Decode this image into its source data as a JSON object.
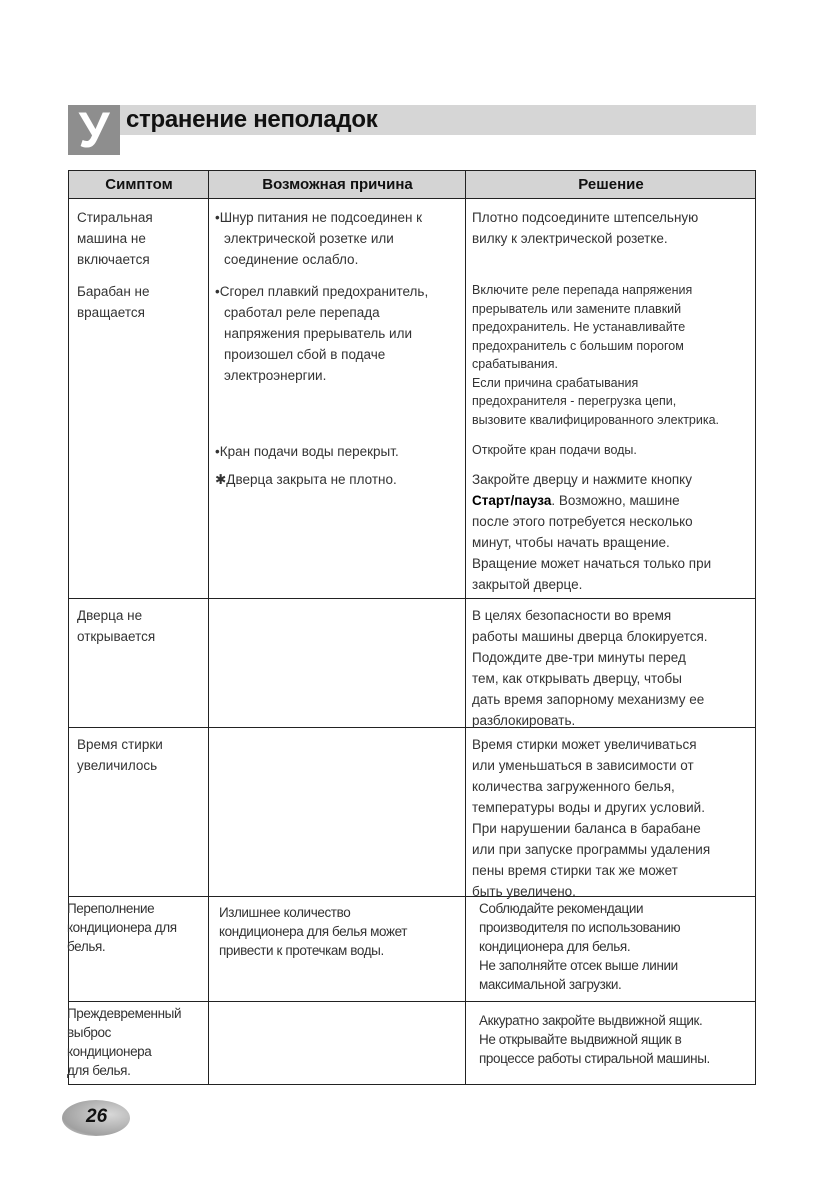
{
  "title": {
    "initial": "У",
    "rest": "странение неполадок"
  },
  "headers": [
    "Симптом",
    "Возможная причина",
    "Решение"
  ],
  "blocks": [
    {
      "col": "symptom",
      "lines": [
        "Стиральная",
        "машина не",
        "включается"
      ]
    },
    {
      "col": "symptom",
      "lines": [
        "Барабан не",
        "вращается"
      ]
    },
    {
      "col": "symptom",
      "lines": [
        "Дверца не",
        "открывается"
      ]
    },
    {
      "col": "symptom",
      "lines": [
        "Время стирки",
        "увеличилось"
      ]
    },
    {
      "col": "symptom",
      "lines": [
        "Переполнение",
        "кондиционера для",
        "белья."
      ]
    },
    {
      "col": "symptom",
      "lines": [
        "Преждевременный",
        "выброс",
        "кондиционера",
        "для белья."
      ]
    },
    {
      "col": "cause",
      "lines": [
        "•Шнур питания не подсоединен к",
        "электрической розетке или",
        "соединение ослабло."
      ]
    },
    {
      "col": "cause",
      "lines": [
        "•Сгорел плавкий предохранитель,",
        "сработал реле перепада",
        "напряжения прерыватель или",
        "произошел сбой в подаче",
        "электроэнергии."
      ]
    },
    {
      "col": "cause",
      "lines": [
        "•Кран подачи воды перекрыт."
      ]
    },
    {
      "col": "cause",
      "lines": [
        "✱Дверца закрыта не плотно."
      ]
    },
    {
      "col": "cause",
      "lines": [
        "Излишнее количество",
        "кондиционера для белья может",
        "привести к протечкам воды."
      ]
    },
    {
      "col": "solution",
      "lines": [
        "Плотно подсоедините штепсельную",
        "вилку к электрической розетке."
      ]
    },
    {
      "col": "solution",
      "lines": [
        "Включите реле перепада напряжения",
        "прерыватель или замените плавкий",
        "предохранитель. Не устанавливайте",
        "предохранитель с большим порогом",
        "срабатывания.",
        "Если причина срабатывания",
        "предохранителя - перегрузка цепи,",
        "вызовите квалифицированного электрика."
      ]
    },
    {
      "col": "solution",
      "lines": [
        "Откройте кран подачи воды."
      ]
    },
    {
      "col": "solution",
      "lines": [
        "Закройте дверцу и нажмите кнопку",
        [
          {
            "b": "Старт/пауза"
          },
          ". Возможно, машине"
        ],
        "после этого потребуется несколько",
        "минут, чтобы начать вращение.",
        "Вращение может начаться только при",
        "закрытой дверце."
      ]
    },
    {
      "col": "solution",
      "lines": [
        "В целях безопасности во время",
        "работы машины дверца блокируется.",
        "Подождите две-три минуты перед",
        "тем, как открывать дверцу, чтобы",
        "дать время запорному механизму ее",
        "разблокировать."
      ]
    },
    {
      "col": "solution",
      "lines": [
        "Время стирки может увеличиваться",
        "или уменьшаться в зависимости от",
        "количества загруженного белья,",
        "температуры воды и других условий.",
        "При нарушении баланса в барабане",
        "или при запуске программы удаления",
        "пены время стирки так же может",
        "быть увеличено."
      ]
    },
    {
      "col": "solution",
      "lines": [
        "Соблюдайте рекомендации",
        "производителя по использованию",
        "кондиционера для белья.",
        "Не заполняйте отсек выше линии",
        "максимальной загрузки."
      ]
    },
    {
      "col": "solution",
      "lines": [
        "Аккуратно закройте выдвижной ящик.",
        "Не открывайте выдвижной ящик в",
        "процессе работы стиральной машины."
      ]
    }
  ],
  "page_number": "26"
}
